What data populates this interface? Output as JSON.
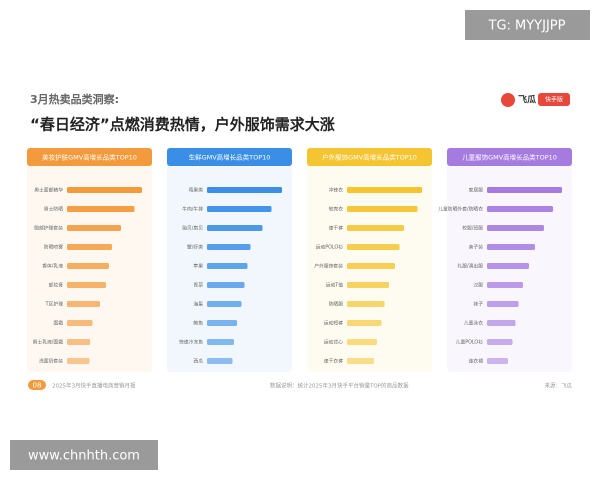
{
  "header": {
    "kicker": "3月热卖品类洞察:",
    "title": "“春日经济”点燃消费热情，户外服饰需求大涨",
    "logo": "飞瓜",
    "logo_badge": "快手版"
  },
  "footer": {
    "page": "08",
    "report": "2025年3月快手直播电商营销月报",
    "note": "数据说明：统计2025年3月快手平台销量TOP的商品数据",
    "source": "来源：飞瓜"
  },
  "watermarks": {
    "top": "TG: MYYJJPP",
    "bottom": "www.chnhth.com"
  },
  "chart_data": [
    {
      "type": "bar",
      "orientation": "horizontal",
      "title": "美妆护肤GMV高增长品类TOP10",
      "color": "#f39a3c",
      "categories": [
        "男士面部精华",
        "男士防晒",
        "眼部护理套装",
        "防晒喷雾",
        "香体/乳液",
        "卸妆膏",
        "T区护理",
        "面霜",
        "男士乳液/面霜",
        "洗面奶套装"
      ],
      "values": [
        100,
        90,
        72,
        60,
        56,
        52,
        44,
        34,
        31,
        30
      ]
    },
    {
      "type": "bar",
      "orientation": "horizontal",
      "title": "生鲜GMV高增长品类TOP10",
      "color": "#3a8ee6",
      "categories": [
        "莓果类",
        "牛肉/牛排",
        "贻贝/扇贝",
        "蟹/虾类",
        "苹果",
        "青菜",
        "海蜇",
        "鲍鱼",
        "快速冷冻鱼",
        "西瓜"
      ],
      "values": [
        100,
        86,
        74,
        58,
        54,
        50,
        46,
        40,
        36,
        34
      ]
    },
    {
      "type": "bar",
      "orientation": "horizontal",
      "title": "户外服饰GMV高增长品类TOP10",
      "color": "#f5c431",
      "categories": [
        "冲锋衣",
        "软壳衣",
        "速干裤",
        "运动POLO衫",
        "户外服饰套装",
        "运动T恤",
        "防晒服",
        "运动短裤",
        "运动背心",
        "速干衣裤"
      ],
      "values": [
        100,
        94,
        76,
        70,
        64,
        56,
        50,
        46,
        40,
        36
      ]
    },
    {
      "type": "bar",
      "orientation": "horizontal",
      "title": "儿童服饰GMV高增长品类TOP10",
      "color": "#a57be0",
      "categories": [
        "家居服",
        "儿童防晒外套/防晒衣",
        "校服/班服",
        "亲子装",
        "礼服/演出服",
        "汉服",
        "袜子",
        "儿童泳衣",
        "儿童POLO衫",
        "连衣裙"
      ],
      "values": [
        100,
        88,
        76,
        64,
        56,
        48,
        42,
        38,
        34,
        28
      ]
    }
  ]
}
